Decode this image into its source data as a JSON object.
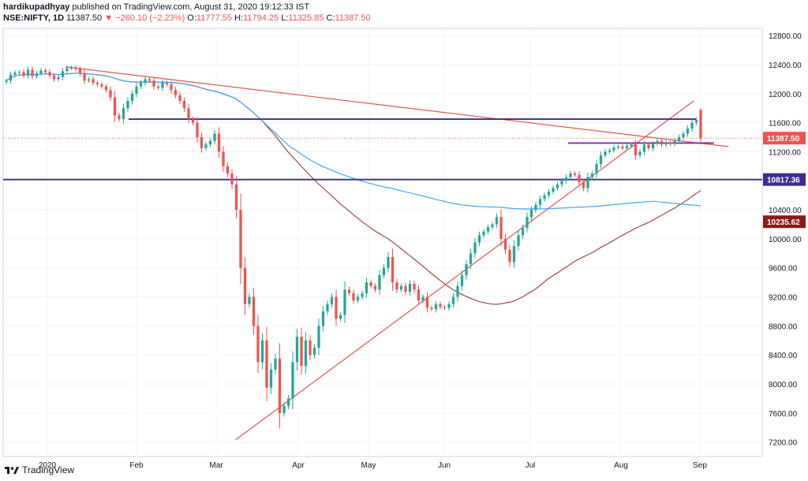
{
  "header": {
    "author": "hardikupadhyay",
    "published_text": "published on TradingView.com, August 31, 2020 19:12:33 IST",
    "symbol": "NSE:NIFTY, 1D",
    "last": "11387.50",
    "change": "▼ −260.10 (−2.23%)",
    "o_label": "O:",
    "o": "11777.55",
    "h_label": "H:",
    "h": "11794.25",
    "l_label": "L:",
    "l": "11325.85",
    "c_label": "C:",
    "c": "11387.50"
  },
  "footer": {
    "brand": "TradingView"
  },
  "colors": {
    "up": "#26a69a",
    "down": "#ef5350",
    "trend": "#e0554f",
    "ma_long": "#42a5f5",
    "ma_mid": "#9e4a3f",
    "level": "#3b2c94",
    "range": "#8e24aa"
  },
  "chart_data": {
    "type": "candlestick",
    "x_labels": [
      "2020",
      "Feb",
      "Mar",
      "Apr",
      "May",
      "Jun",
      "Jul",
      "Aug",
      "Sep"
    ],
    "ylim": [
      7000,
      12900
    ],
    "y_ticks": [
      7200,
      7600,
      8000,
      8400,
      8800,
      9200,
      9600,
      10000,
      10400,
      10800,
      11200,
      11600,
      12000,
      12400,
      12800
    ],
    "y_tick_labels": [
      "7200.00",
      "7600.00",
      "8000.00",
      "8400.00",
      "8800.00",
      "9200.00",
      "9600.00",
      "10000.00",
      "10400.00",
      "10800.00",
      "11200.00",
      "11600.00",
      "12000.00",
      "12400.00",
      "12800.00"
    ],
    "price_labels": [
      {
        "value": 11387.5,
        "text": "11387.50",
        "color": "#ef5350"
      },
      {
        "value": 10817.36,
        "text": "10817.36",
        "color": "#3b2c94"
      },
      {
        "value": 10235.62,
        "text": "10235.62",
        "color": "#8b1a1a"
      }
    ],
    "close_series": [
      12180,
      12260,
      12290,
      12300,
      12250,
      12330,
      12240,
      12280,
      12320,
      12300,
      12250,
      12200,
      12230,
      12310,
      12350,
      12360,
      12340,
      12280,
      12180,
      12200,
      12150,
      12130,
      12100,
      12050,
      11950,
      11700,
      11650,
      11800,
      11900,
      12000,
      12100,
      12150,
      12200,
      12180,
      12100,
      12080,
      12150,
      12130,
      12050,
      11980,
      11900,
      11800,
      11650,
      11600,
      11400,
      11250,
      11300,
      11350,
      11450,
      11200,
      11000,
      10900,
      10750,
      10400,
      9600,
      9100,
      9200,
      8800,
      8300,
      8600,
      7950,
      8200,
      8350,
      7600,
      7700,
      7800,
      8300,
      8650,
      8250,
      8600,
      8400,
      8500,
      8800,
      9000,
      9100,
      9200,
      8900,
      8950,
      9300,
      9250,
      9150,
      9200,
      9250,
      9400,
      9350,
      9300,
      9500,
      9600,
      9750,
      9400,
      9300,
      9350,
      9270,
      9380,
      9300,
      9150,
      9200,
      9050,
      9030,
      9100,
      9060,
      9050,
      9100,
      9200,
      9350,
      9500,
      9650,
      9800,
      9950,
      10050,
      10100,
      10160,
      10200,
      10300,
      10000,
      9850,
      9680,
      9900,
      10050,
      10150,
      10300,
      10400,
      10470,
      10550,
      10600,
      10650,
      10700,
      10750,
      10800,
      10850,
      10900,
      10880,
      10780,
      10700,
      10850,
      10900,
      11030,
      11150,
      11200,
      11220,
      11260,
      11270,
      11250,
      11280,
      11300,
      11150,
      11200,
      11300,
      11250,
      11310,
      11350,
      11300,
      11330,
      11310,
      11350,
      11400,
      11450,
      11520,
      11600,
      11640,
      11387
    ],
    "annotations": [
      {
        "name": "descending-trendline",
        "from": [
          0.085,
          12370
        ],
        "to": [
          1.04,
          11270
        ]
      },
      {
        "name": "ascending-trendline",
        "from": [
          0.33,
          7230
        ],
        "to": [
          0.99,
          11900
        ]
      },
      {
        "name": "horizontal-level-1",
        "value": 11650
      },
      {
        "name": "horizontal-level-2",
        "value": 10817.36
      },
      {
        "name": "range-line",
        "value": 11320
      }
    ]
  }
}
